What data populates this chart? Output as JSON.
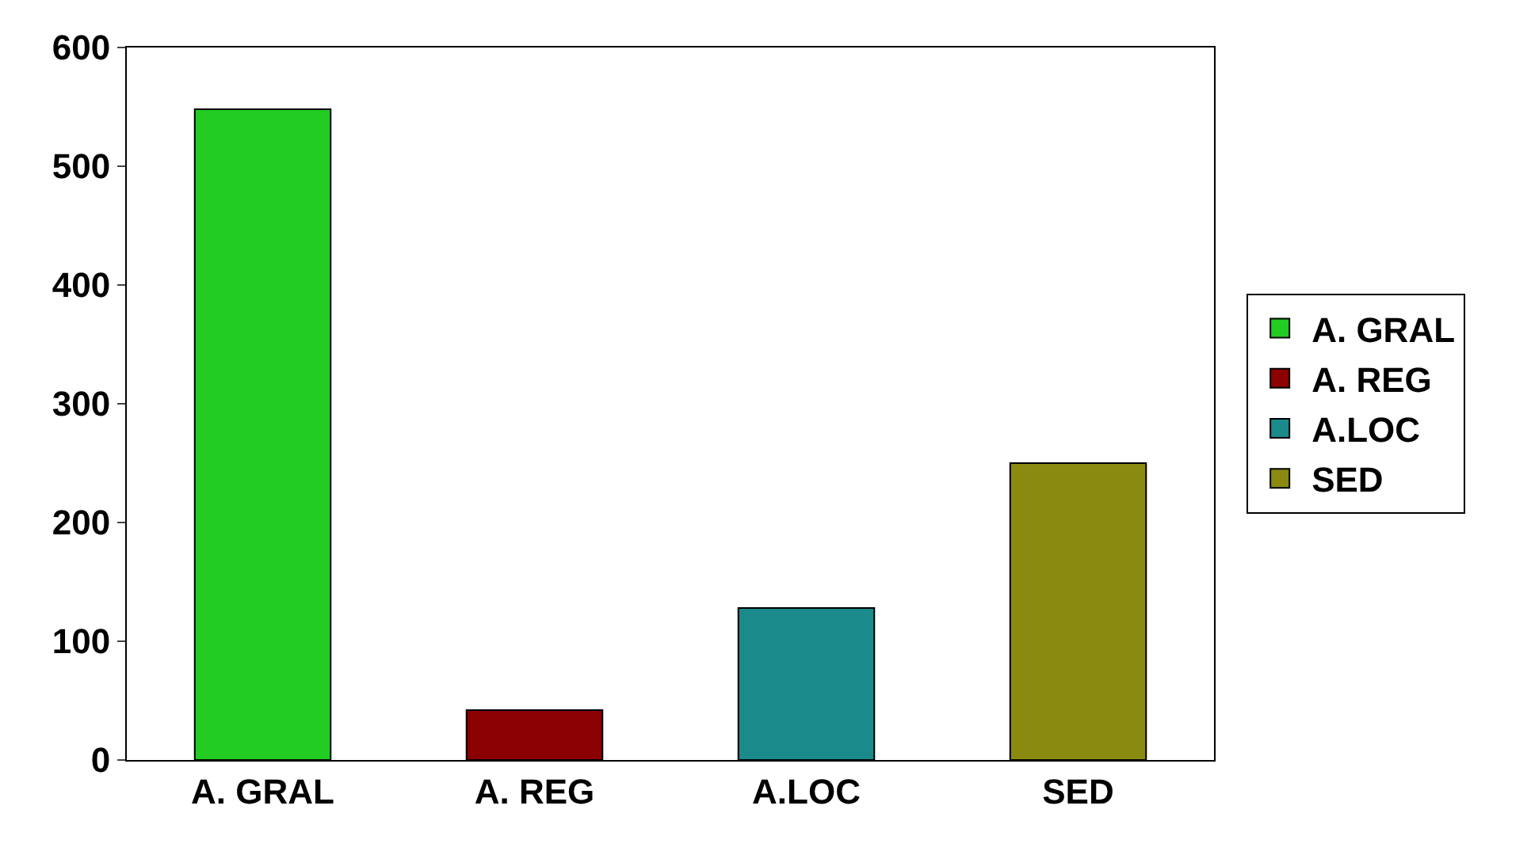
{
  "chart_data": {
    "type": "bar",
    "categories": [
      "A. GRAL",
      "A. REG",
      "A.LOC",
      "SED"
    ],
    "series": [
      {
        "name": "A. GRAL",
        "color": "#22cc22",
        "values": [
          548,
          null,
          null,
          null
        ]
      },
      {
        "name": "A. REG",
        "color": "#8b0000",
        "values": [
          null,
          42,
          null,
          null
        ]
      },
      {
        "name": "A.LOC",
        "color": "#1a8a8a",
        "values": [
          null,
          null,
          128,
          null
        ]
      },
      {
        "name": "SED",
        "color": "#8a8a10",
        "values": [
          null,
          null,
          null,
          250
        ]
      }
    ],
    "ylim": [
      0,
      600
    ],
    "yticks": [
      0,
      100,
      200,
      300,
      400,
      500,
      600
    ],
    "legend": "right"
  }
}
